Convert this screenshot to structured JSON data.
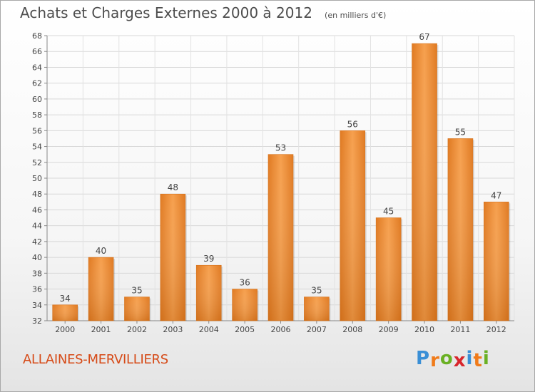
{
  "chart_data": {
    "type": "bar",
    "title": "Achats et Charges Externes 2000 à 2012",
    "subtitle": "(en milliers d'€)",
    "categories": [
      "2000",
      "2001",
      "2002",
      "2003",
      "2004",
      "2005",
      "2006",
      "2007",
      "2008",
      "2009",
      "2010",
      "2011",
      "2012"
    ],
    "values": [
      34,
      40,
      35,
      48,
      39,
      36,
      53,
      35,
      56,
      45,
      67,
      55,
      47
    ],
    "ylim": [
      32,
      68
    ],
    "yticks": [
      32,
      34,
      36,
      38,
      40,
      42,
      44,
      46,
      48,
      50,
      52,
      54,
      56,
      58,
      60,
      62,
      64,
      66,
      68
    ],
    "grid": true,
    "bar_color": "#f0923a"
  },
  "footer": {
    "commune": "ALLAINES-MERVILLIERS",
    "logo": [
      "P",
      "r",
      "o",
      "x",
      "i",
      "t",
      "i"
    ],
    "logo_colors": [
      "#3a8fd6",
      "#f07b1a",
      "#6ab023",
      "#d8262c",
      "#3a8fd6",
      "#f07b1a",
      "#6ab023"
    ]
  }
}
